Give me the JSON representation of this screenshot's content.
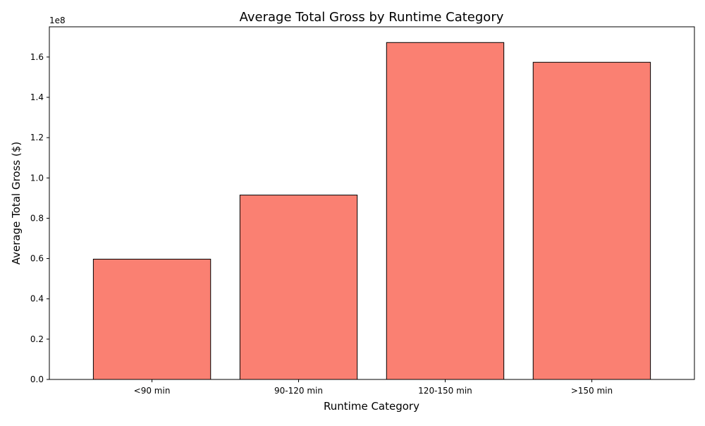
{
  "chart_data": {
    "type": "bar",
    "title": "Average Total Gross by Runtime Category",
    "xlabel": "Runtime Category",
    "ylabel": "Average Total Gross ($)",
    "categories": [
      "<90 min",
      "90-120 min",
      "120-150 min",
      ">150 min"
    ],
    "values": [
      59700000,
      91500000,
      167200000,
      157400000
    ],
    "ylim": [
      0,
      175000000
    ],
    "yticks": [
      0,
      20000000,
      40000000,
      60000000,
      80000000,
      100000000,
      120000000,
      140000000,
      160000000
    ],
    "ytick_labels": [
      "0.0",
      "0.2",
      "0.4",
      "0.6",
      "0.8",
      "1.0",
      "1.2",
      "1.4",
      "1.6"
    ],
    "y_offset_label": "1e8",
    "grid": false,
    "legend": "none",
    "bar_color": "#fa8072",
    "bar_edge_color": "#000000"
  }
}
